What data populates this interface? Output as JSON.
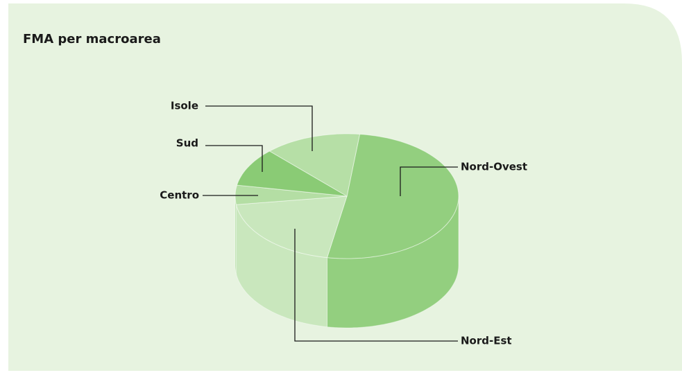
{
  "chart_data": {
    "type": "pie",
    "title": "FMA per macroarea",
    "categories": [
      "Nord-Ovest",
      "Nord-Est",
      "Centro",
      "Sud",
      "Isole"
    ],
    "values": [
      51,
      20,
      5,
      10,
      14
    ],
    "colors": [
      "#93cf7f",
      "#c9e7bd",
      "#b4dea4",
      "#8acb75",
      "#b6dfa6"
    ]
  }
}
